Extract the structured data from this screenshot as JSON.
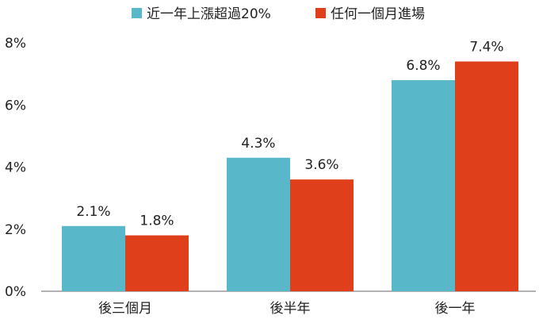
{
  "chart_data": {
    "type": "bar",
    "categories": [
      "後三個月",
      "後半年",
      "後一年"
    ],
    "series": [
      {
        "name": "近一年上漲超過20%",
        "values": [
          2.1,
          4.3,
          6.8
        ],
        "color": "#58B7C9"
      },
      {
        "name": "任何一個月進場",
        "values": [
          1.8,
          3.6,
          7.4
        ],
        "color": "#E03F1C"
      }
    ],
    "value_labels": [
      [
        "2.1%",
        "4.3%",
        "6.8%"
      ],
      [
        "1.8%",
        "3.6%",
        "7.4%"
      ]
    ],
    "ylim": [
      0,
      8
    ],
    "yticks": [
      "0%",
      "2%",
      "4%",
      "6%",
      "8%"
    ],
    "grid": false,
    "legend_position": "top-center"
  }
}
